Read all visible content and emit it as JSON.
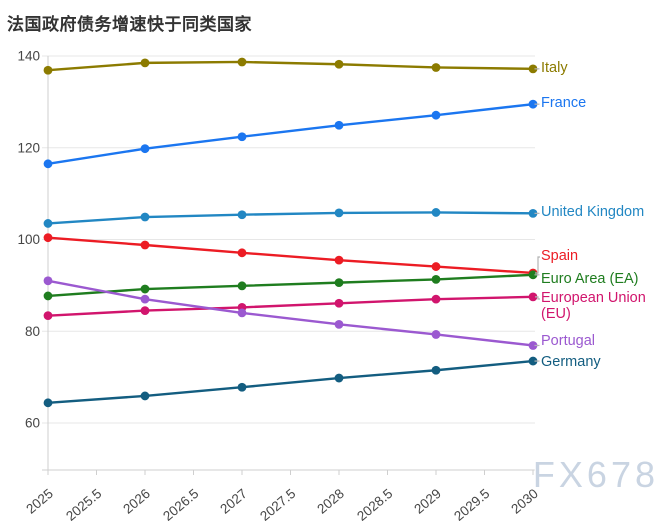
{
  "title": "法国政府债务增速快于同类国家",
  "watermark": "FX678",
  "chart_data": {
    "type": "line",
    "x": [
      2025,
      2026,
      2027,
      2028,
      2029,
      2030
    ],
    "x_tick_labels": [
      "2025",
      "2025.5",
      "2026",
      "2026.5",
      "2027",
      "2027.5",
      "2028",
      "2028.5",
      "2029",
      "2029.5",
      "2030"
    ],
    "y_ticks": [
      60,
      80,
      100,
      120,
      140
    ],
    "y_tick_labels": [
      "60",
      "80",
      "100",
      "120",
      "140"
    ],
    "ylim": [
      50,
      142
    ],
    "xlim": [
      2025,
      2030
    ],
    "grid": "horizontal",
    "legend_position": "right-direct-labels",
    "title": "法国政府债务增速快于同类国家",
    "xlabel": "",
    "ylabel": "",
    "series": [
      {
        "name": "Italy",
        "color": "#8c7b00",
        "values": [
          136.9,
          138.5,
          138.7,
          138.2,
          137.5,
          137.2
        ]
      },
      {
        "name": "France",
        "color": "#1b76f0",
        "values": [
          116.5,
          119.8,
          122.4,
          124.9,
          127.1,
          129.5
        ]
      },
      {
        "name": "United Kingdom",
        "color": "#2287c3",
        "values": [
          103.5,
          104.9,
          105.4,
          105.8,
          105.9,
          105.7
        ]
      },
      {
        "name": "Spain",
        "color": "#ec1c24",
        "values": [
          100.4,
          98.8,
          97.1,
          95.5,
          94.1,
          92.7
        ]
      },
      {
        "name": "Euro Area (EA)",
        "color": "#1f7d1f",
        "values": [
          87.7,
          89.2,
          89.9,
          90.6,
          91.3,
          92.3
        ]
      },
      {
        "name": "European Union (EU)",
        "color": "#d1156d",
        "values": [
          83.4,
          84.5,
          85.2,
          86.1,
          87.0,
          87.5
        ]
      },
      {
        "name": "Portugal",
        "color": "#9b59d0",
        "values": [
          91.0,
          87.0,
          84.0,
          81.5,
          79.3,
          76.9
        ]
      },
      {
        "name": "Germany",
        "color": "#135d80",
        "values": [
          64.4,
          65.9,
          67.8,
          69.8,
          71.5,
          73.5
        ]
      }
    ]
  },
  "colors": {
    "grid": "#e7e7e7",
    "axis": "#cfcfcf",
    "tick_text": "#454545",
    "title_text": "#333333",
    "leader": "#b3b3b3",
    "watermark": "#c9d4e2",
    "background": "#ffffff"
  }
}
